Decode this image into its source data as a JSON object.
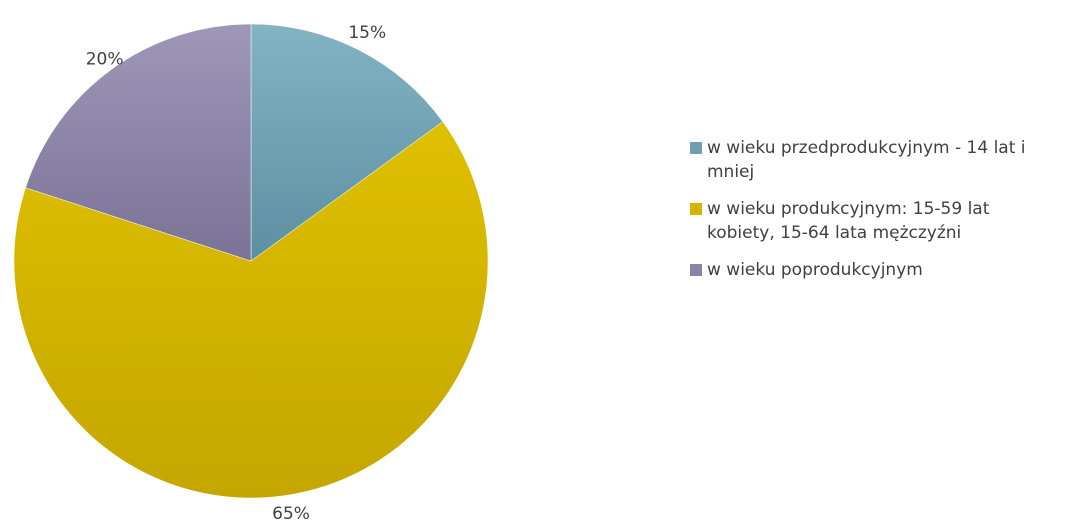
{
  "chart_data": {
    "type": "pie",
    "categories": [
      "w wieku przedprodukcyjnym - 14 lat i mniej",
      "w wieku produkcyjnym: 15-59 lat kobiety, 15-64 lata mężczyźni",
      "w wieku poprodukcyjnym"
    ],
    "values": [
      15,
      65,
      20
    ],
    "data_labels": [
      "15%",
      "65%",
      "20%"
    ],
    "colors": [
      "#6E9FB0",
      "#D3B400",
      "#8B82A6"
    ],
    "title": "",
    "legend_position": "right"
  }
}
